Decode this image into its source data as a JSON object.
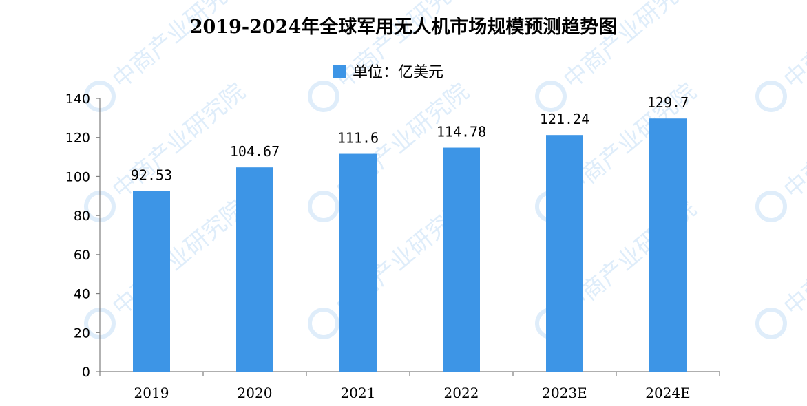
{
  "chart_data": {
    "type": "bar",
    "title": "2019-2024年全球军用无人机市场规模预测趋势图",
    "legend": {
      "label": "单位：亿美元",
      "position": "top-center"
    },
    "categories": [
      "2019",
      "2020",
      "2021",
      "2022",
      "2023E",
      "2024E"
    ],
    "series": [
      {
        "values": [
          92.53,
          104.67,
          111.6,
          114.78,
          121.24,
          129.7
        ]
      }
    ],
    "data_labels": [
      "92.53",
      "104.67",
      "111.6",
      "114.78",
      "121.24",
      "129.7"
    ],
    "ylim": [
      0,
      140
    ],
    "yticks": [
      0,
      20,
      40,
      60,
      80,
      100,
      120,
      140
    ],
    "xlabel": "",
    "ylabel": "",
    "grid": false,
    "colors": {
      "bar": "#3d95e6",
      "axis": "#7f7f7f",
      "text": "#000000"
    }
  },
  "watermark": {
    "text": "中商产业研究院"
  }
}
